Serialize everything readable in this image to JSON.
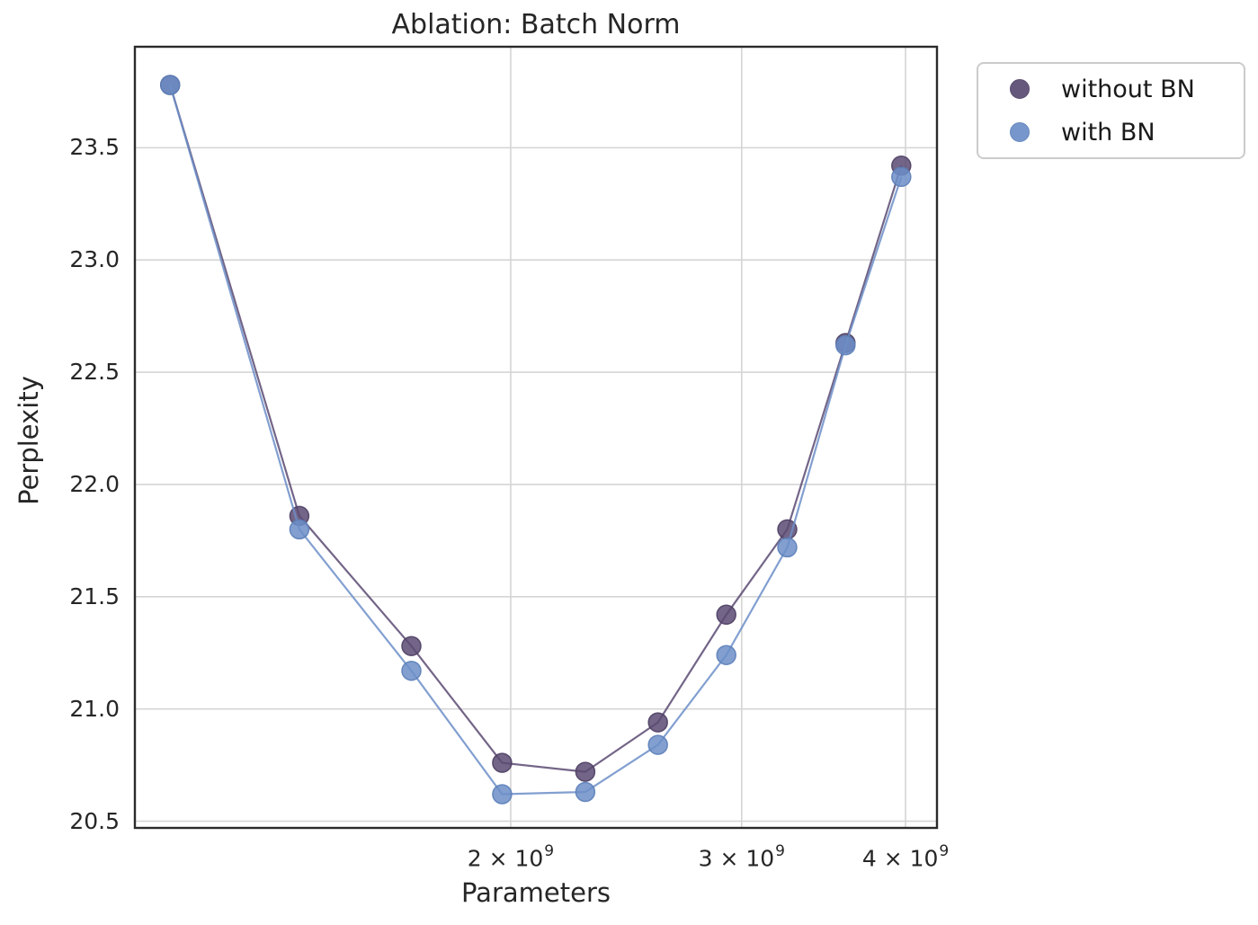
{
  "chart_data": {
    "type": "line",
    "title": "Ablation: Batch Norm",
    "xlabel": "Parameters",
    "ylabel": "Perplexity",
    "x_scale": "log",
    "xlim": [
      1034000000.0,
      4227000000.0
    ],
    "ylim": [
      20.47,
      23.95
    ],
    "grid": true,
    "legend_position": "upper-right-outside",
    "x": [
      1100000000.0,
      1380000000.0,
      1680000000.0,
      1970000000.0,
      2280000000.0,
      2590000000.0,
      2920000000.0,
      3250000000.0,
      3600000000.0,
      3970000000.0
    ],
    "series": [
      {
        "name": "without BN",
        "color": "#5a4a72",
        "edge_color": "#4e3f63",
        "values": [
          23.78,
          21.86,
          21.28,
          20.76,
          20.72,
          20.94,
          21.42,
          21.8,
          22.63,
          23.42
        ]
      },
      {
        "name": "with BN",
        "color": "#6c8ec8",
        "edge_color": "#5c80b8",
        "values": [
          23.78,
          21.8,
          21.17,
          20.62,
          20.63,
          20.84,
          21.24,
          21.72,
          22.62,
          23.37
        ]
      }
    ],
    "yticks": [
      {
        "value": 20.5,
        "label": "20.5"
      },
      {
        "value": 21.0,
        "label": "21.0"
      },
      {
        "value": 21.5,
        "label": "21.5"
      },
      {
        "value": 22.0,
        "label": "22.0"
      },
      {
        "value": 22.5,
        "label": "22.5"
      },
      {
        "value": 23.0,
        "label": "23.0"
      },
      {
        "value": 23.5,
        "label": "23.5"
      }
    ],
    "xticks": [
      {
        "value": 2000000000.0,
        "base": "2 × 10",
        "exp": "9"
      },
      {
        "value": 3000000000.0,
        "base": "3 × 10",
        "exp": "9"
      },
      {
        "value": 4000000000.0,
        "base": "4 × 10",
        "exp": "9"
      }
    ]
  },
  "style": {
    "grid_color": "#d5d5d5",
    "spine_color": "#2b2b2b",
    "text_color": "#262626",
    "background": "#ffffff"
  }
}
